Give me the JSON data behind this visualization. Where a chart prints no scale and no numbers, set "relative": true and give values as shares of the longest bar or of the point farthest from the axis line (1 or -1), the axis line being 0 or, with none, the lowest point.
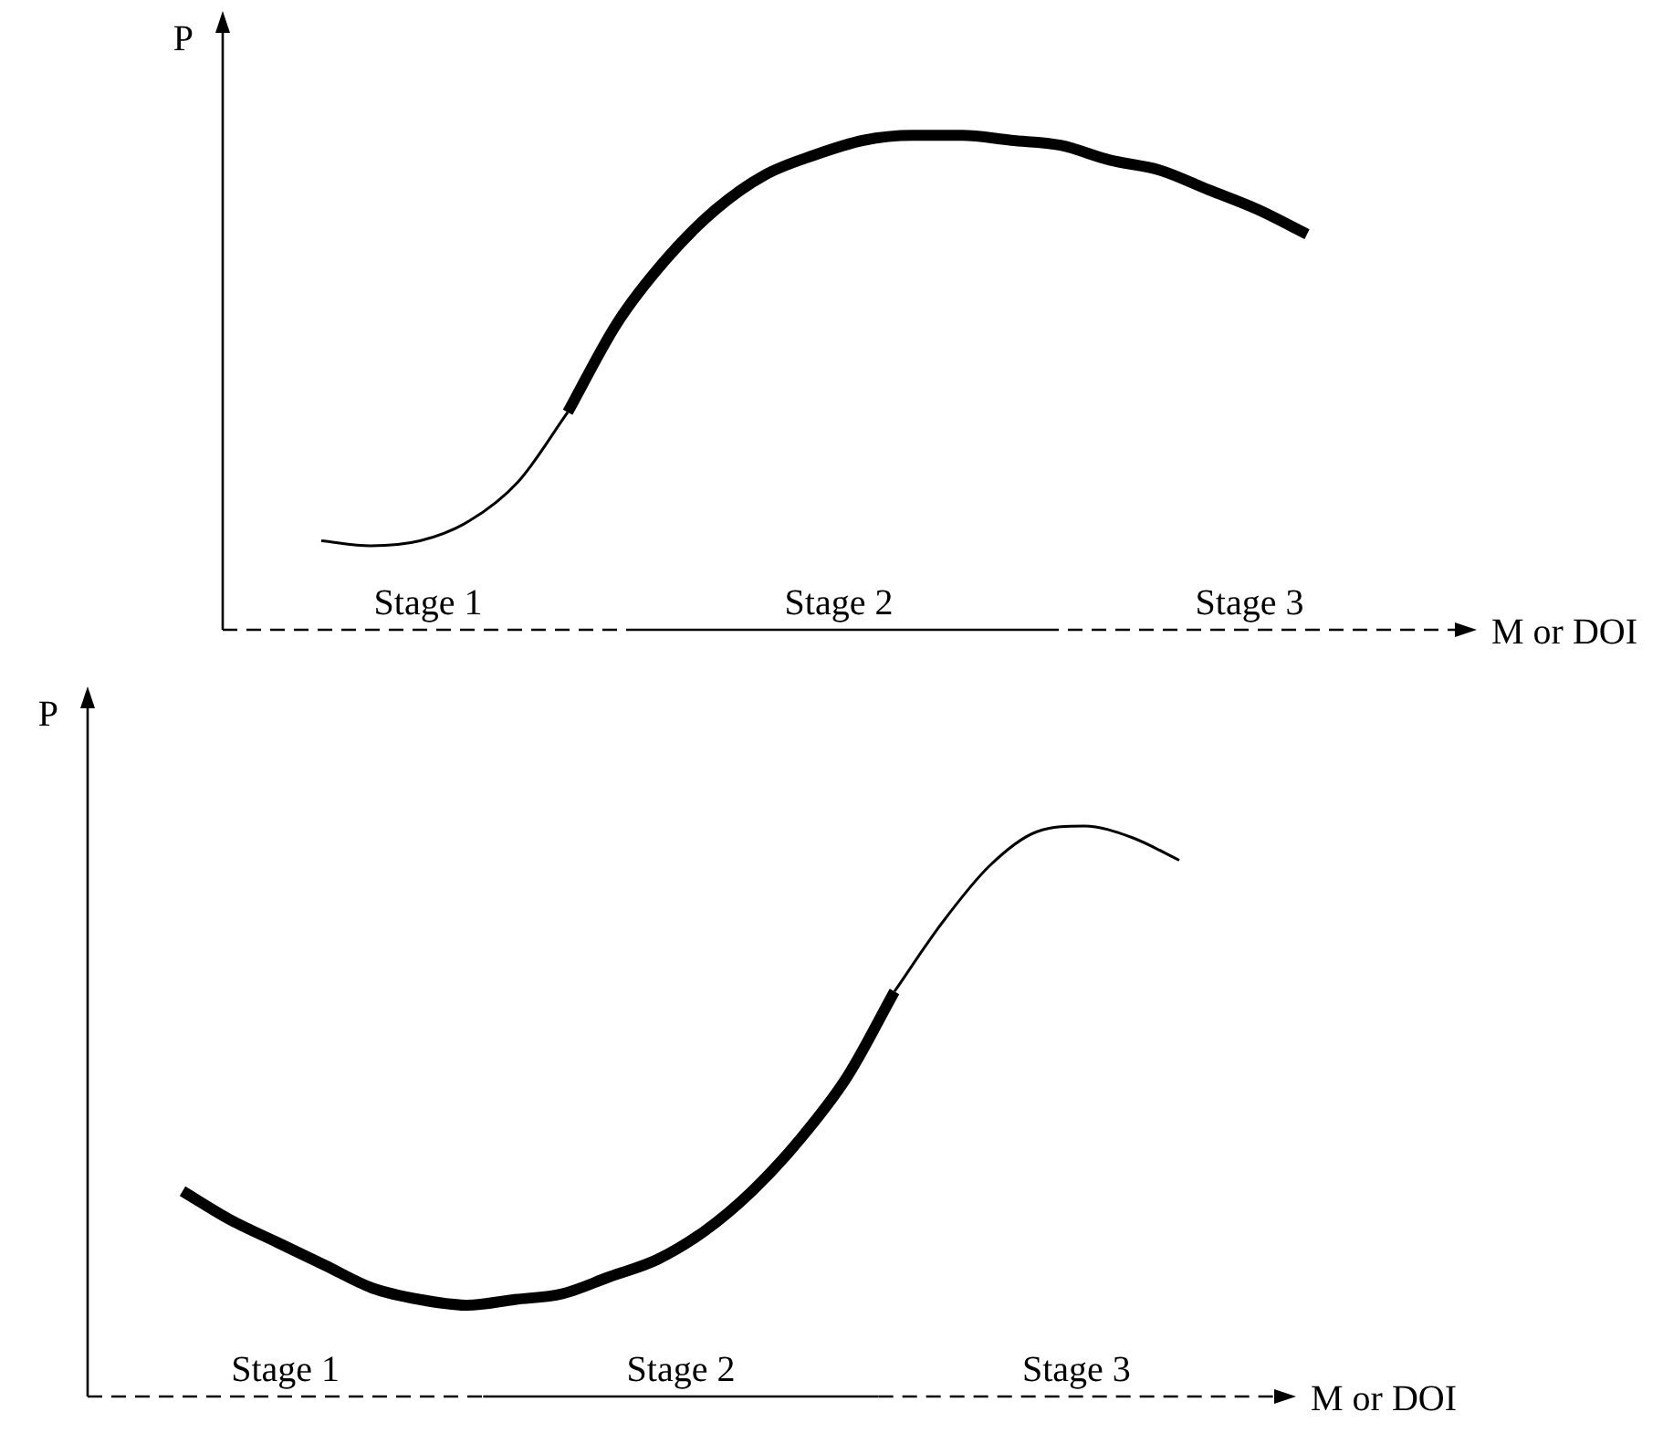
{
  "chart_data": [
    {
      "type": "line",
      "relative": true,
      "marker": "none",
      "xlabel": "M or DOI",
      "ylabel": "P",
      "annotations": [
        "Stage 1",
        "Stage 2",
        "Stage 3"
      ],
      "categories": [
        null,
        null,
        null,
        null,
        null,
        null,
        null,
        null,
        null,
        null,
        null,
        null,
        null,
        null,
        null,
        null,
        null,
        null,
        null,
        null,
        null,
        null,
        null,
        null,
        null,
        null
      ],
      "series": [
        {
          "color": "#000000",
          "values": [
            null,
            null,
            null,
            null,
            null,
            null,
            null,
            0.44,
            0.62,
            0.75,
            0.85,
            0.92,
            0.96,
            0.99,
            1.0,
            1.0,
            0.99,
            0.98,
            0.95,
            0.93,
            0.89,
            0.85,
            0.8,
            null,
            null,
            null
          ]
        },
        {
          "color": "#000000",
          "values": [
            null,
            null,
            0.18,
            0.17,
            0.18,
            0.22,
            0.3,
            0.44,
            null,
            null,
            null,
            null,
            null,
            null,
            null,
            null,
            null,
            null,
            null,
            null,
            null,
            null,
            null,
            null,
            null,
            null
          ]
        }
      ]
    },
    {
      "type": "line",
      "relative": true,
      "marker": "none",
      "xlabel": "M or DOI",
      "ylabel": "P",
      "annotations": [
        "Stage 1",
        "Stage 2",
        "Stage 3"
      ],
      "categories": [
        null,
        null,
        null,
        null,
        null,
        null,
        null,
        null,
        null,
        null,
        null,
        null,
        null,
        null,
        null,
        null,
        null,
        null,
        null,
        null,
        null,
        null,
        null,
        null,
        null,
        null
      ],
      "series": [
        {
          "color": "#000000",
          "values": [
            null,
            null,
            0.36,
            0.31,
            0.27,
            0.23,
            0.19,
            0.17,
            0.16,
            0.17,
            0.18,
            0.21,
            0.24,
            0.29,
            0.36,
            0.45,
            0.56,
            0.71,
            null,
            null,
            null,
            null,
            null,
            null,
            null,
            null
          ]
        },
        {
          "color": "#000000",
          "values": [
            null,
            null,
            null,
            null,
            null,
            null,
            null,
            null,
            null,
            null,
            null,
            null,
            null,
            null,
            null,
            null,
            null,
            0.71,
            0.83,
            0.93,
            0.99,
            1.0,
            0.98,
            0.94,
            null,
            null
          ]
        }
      ]
    }
  ]
}
